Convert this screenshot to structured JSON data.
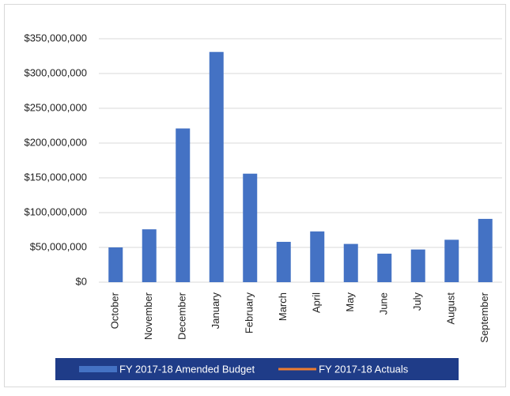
{
  "chart_data": {
    "type": "bar",
    "categories": [
      "October",
      "November",
      "December",
      "January",
      "February",
      "March",
      "April",
      "May",
      "June",
      "July",
      "August",
      "September"
    ],
    "series": [
      {
        "name": "FY 2017-18 Amended Budget",
        "type": "bar",
        "color": "#4472c4",
        "values": [
          50000000,
          76000000,
          221000000,
          331000000,
          156000000,
          58000000,
          73000000,
          55000000,
          41000000,
          47000000,
          61000000,
          91000000
        ]
      },
      {
        "name": "FY 2017-18 Actuals",
        "type": "line",
        "color": "#ed7d31",
        "values": [
          null,
          null,
          null,
          null,
          null,
          null,
          null,
          null,
          null,
          null,
          null,
          null
        ]
      }
    ],
    "ylim": [
      0,
      350000000
    ],
    "yticks": [
      {
        "value": 0,
        "label": "$0"
      },
      {
        "value": 50000000,
        "label": "$50,000,000"
      },
      {
        "value": 100000000,
        "label": "$100,000,000"
      },
      {
        "value": 150000000,
        "label": "$150,000,000"
      },
      {
        "value": 200000000,
        "label": "$200,000,000"
      },
      {
        "value": 250000000,
        "label": "$250,000,000"
      },
      {
        "value": 300000000,
        "label": "$300,000,000"
      },
      {
        "value": 350000000,
        "label": "$350,000,000"
      }
    ],
    "grid": true,
    "legend": "bottom"
  }
}
